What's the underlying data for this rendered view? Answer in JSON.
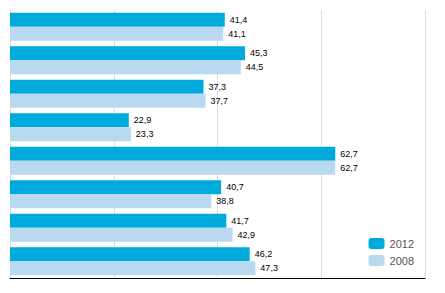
{
  "chart_data": {
    "type": "bar",
    "orientation": "horizontal",
    "categories": [
      null,
      null,
      null,
      null,
      null,
      null,
      null,
      null
    ],
    "series": [
      {
        "name": "2012",
        "color": "#00AADD",
        "values": [
          41.4,
          45.3,
          37.3,
          22.9,
          62.7,
          40.7,
          41.7,
          46.2
        ],
        "value_labels": [
          "41,4",
          "45,3",
          "37,3",
          "22,9",
          "62,7",
          "40,7",
          "41,7",
          "46,2"
        ]
      },
      {
        "name": "2008",
        "color": "#B8D9F0",
        "values": [
          41.1,
          44.5,
          37.7,
          23.3,
          62.7,
          38.8,
          42.9,
          47.3
        ],
        "value_labels": [
          "41,1",
          "44,5",
          "37,7",
          "23,3",
          "62,7",
          "38,8",
          "42,9",
          "47,3"
        ]
      }
    ],
    "xlim": [
      0,
      80
    ],
    "xticks": [
      0,
      20,
      40,
      60,
      80
    ],
    "grid": true,
    "legend": "lower right",
    "data_labels": true,
    "tick_labels": false
  }
}
